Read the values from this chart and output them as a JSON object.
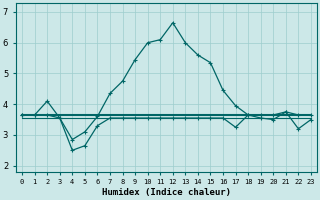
{
  "xlabel": "Humidex (Indice chaleur)",
  "bg_color": "#cce8e8",
  "grid_color": "#9ecece",
  "line_color": "#006666",
  "ylim": [
    1.8,
    7.3
  ],
  "xlim": [
    -0.5,
    23.5
  ],
  "yticks": [
    2,
    3,
    4,
    5,
    6,
    7
  ],
  "x_ticks": [
    0,
    1,
    2,
    3,
    4,
    5,
    6,
    7,
    8,
    9,
    10,
    11,
    12,
    13,
    14,
    15,
    16,
    17,
    18,
    19,
    20,
    21,
    22,
    23
  ],
  "x_tick_labels": [
    "0",
    "1",
    "2",
    "3",
    "4",
    "5",
    "6",
    "7",
    "8",
    "9",
    "10",
    "11",
    "12",
    "13",
    "14",
    "15",
    "16",
    "17",
    "18",
    "19",
    "20",
    "21",
    "22",
    "23"
  ],
  "peaked_x": [
    0,
    1,
    2,
    3,
    4,
    5,
    6,
    7,
    8,
    9,
    10,
    11,
    12,
    13,
    14,
    15,
    16,
    17,
    18,
    19,
    20,
    21,
    22,
    23
  ],
  "peaked_y": [
    3.65,
    3.65,
    4.1,
    3.55,
    2.85,
    3.1,
    3.6,
    4.35,
    4.75,
    5.45,
    6.0,
    6.1,
    6.65,
    6.0,
    5.6,
    5.35,
    4.45,
    3.95,
    3.65,
    3.65,
    3.65,
    3.75,
    3.65,
    3.65
  ],
  "flat_x": [
    0,
    1,
    2,
    3,
    4,
    5,
    6,
    7,
    8,
    9,
    10,
    11,
    12,
    13,
    14,
    15,
    16,
    17,
    18,
    19,
    20,
    21,
    22,
    23
  ],
  "flat_y": [
    3.65,
    3.65,
    3.65,
    3.65,
    3.65,
    3.65,
    3.65,
    3.65,
    3.65,
    3.65,
    3.65,
    3.65,
    3.65,
    3.65,
    3.65,
    3.65,
    3.65,
    3.65,
    3.65,
    3.65,
    3.65,
    3.65,
    3.65,
    3.65
  ],
  "dip_x": [
    0,
    1,
    2,
    3,
    4,
    5,
    6,
    7,
    8,
    9,
    10,
    11,
    12,
    13,
    14,
    15,
    16,
    17,
    18,
    19,
    20,
    21,
    22,
    23
  ],
  "dip_y": [
    3.65,
    3.65,
    3.65,
    3.55,
    2.5,
    2.65,
    3.3,
    3.55,
    3.55,
    3.55,
    3.55,
    3.55,
    3.55,
    3.55,
    3.55,
    3.55,
    3.55,
    3.25,
    3.65,
    3.55,
    3.5,
    3.75,
    3.2,
    3.5
  ],
  "flat2_x": [
    0,
    1,
    2,
    3,
    4,
    5,
    6,
    7,
    8,
    9,
    10,
    11,
    12,
    13,
    14,
    15,
    16,
    17,
    18,
    19,
    20,
    21,
    22,
    23
  ],
  "flat2_y": [
    3.55,
    3.55,
    3.55,
    3.55,
    3.55,
    3.55,
    3.55,
    3.55,
    3.55,
    3.55,
    3.55,
    3.55,
    3.55,
    3.55,
    3.55,
    3.55,
    3.55,
    3.55,
    3.55,
    3.55,
    3.55,
    3.55,
    3.55,
    3.55
  ]
}
